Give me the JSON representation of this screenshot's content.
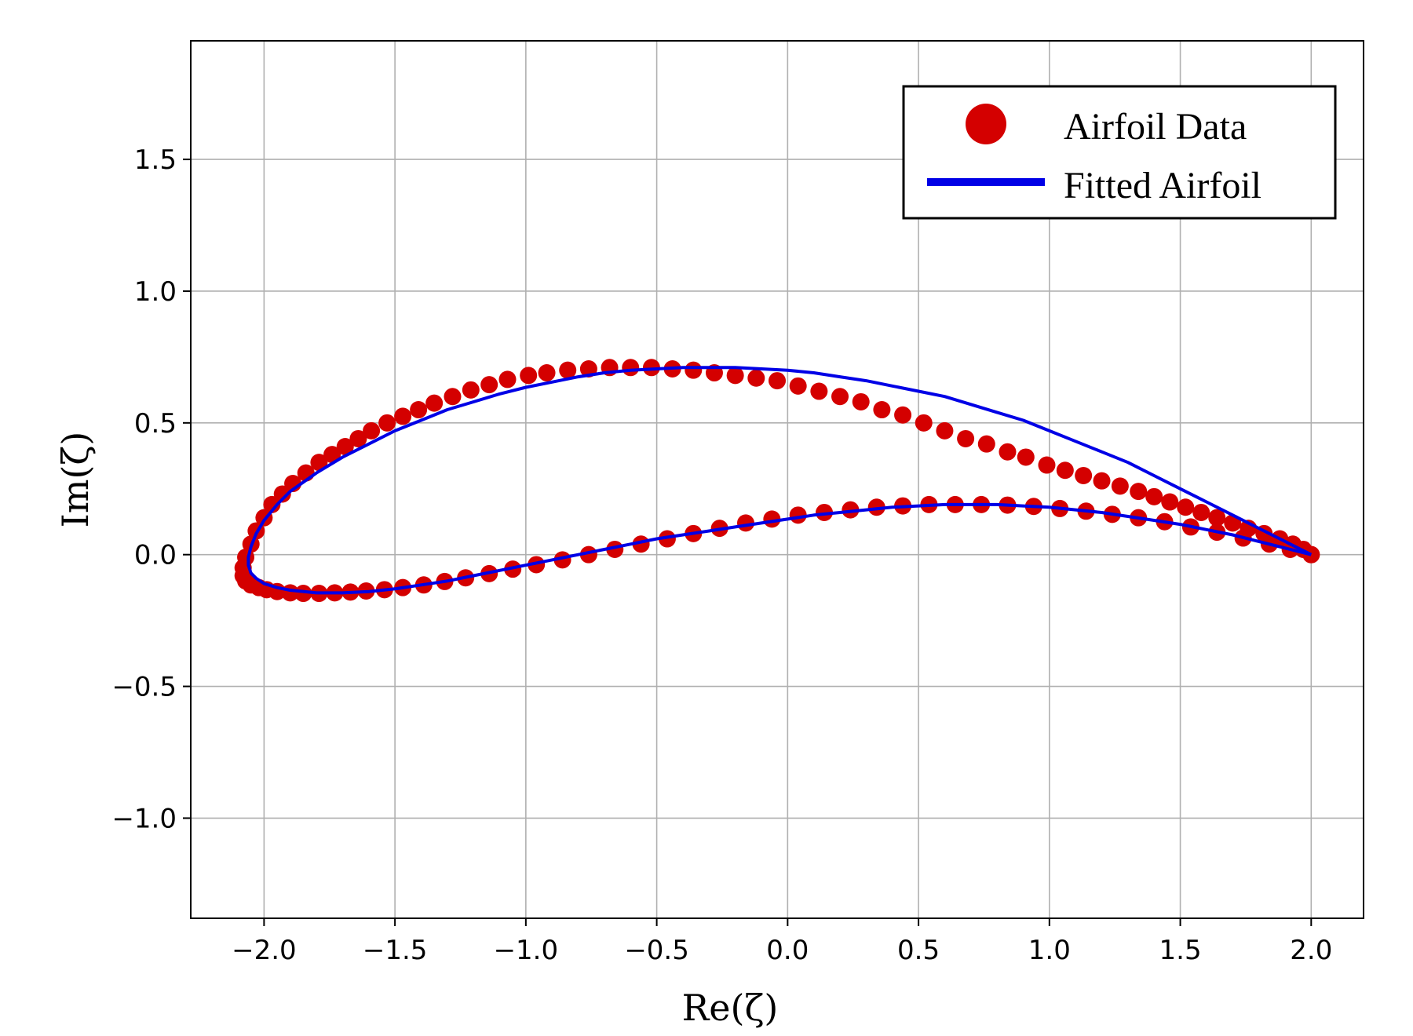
{
  "chart_data": {
    "type": "scatter",
    "title": "",
    "xlabel": "Re(ζ)",
    "ylabel": "Im(ζ)",
    "xlim": [
      -2.28,
      2.2
    ],
    "ylim": [
      -1.38,
      1.95
    ],
    "xticks": [
      -2.0,
      -1.5,
      -1.0,
      -0.5,
      0.0,
      0.5,
      1.0,
      1.5,
      2.0
    ],
    "yticks": [
      -1.0,
      -0.5,
      0.0,
      0.5,
      1.0,
      1.5
    ],
    "xtick_labels": [
      "−2.0",
      "−1.5",
      "−1.0",
      "−0.5",
      "0.0",
      "0.5",
      "1.0",
      "1.5",
      "2.0"
    ],
    "ytick_labels": [
      "−1.0",
      "−0.5",
      "0.0",
      "0.5",
      "1.0",
      "1.5"
    ],
    "grid": true,
    "legend_position": "top-right",
    "series": [
      {
        "name": "Airfoil Data",
        "kind": "scatter",
        "color": "#d40000",
        "x": [
          2.0,
          1.97,
          1.93,
          1.88,
          1.82,
          1.76,
          1.7,
          1.64,
          1.58,
          1.52,
          1.46,
          1.4,
          1.34,
          1.27,
          1.2,
          1.13,
          1.06,
          0.99,
          0.91,
          0.84,
          0.76,
          0.68,
          0.6,
          0.52,
          0.44,
          0.36,
          0.28,
          0.2,
          0.12,
          0.04,
          -0.04,
          -0.12,
          -0.2,
          -0.28,
          -0.36,
          -0.44,
          -0.52,
          -0.6,
          -0.68,
          -0.76,
          -0.84,
          -0.92,
          -0.99,
          -1.07,
          -1.14,
          -1.21,
          -1.28,
          -1.35,
          -1.41,
          -1.47,
          -1.53,
          -1.59,
          -1.64,
          -1.69,
          -1.74,
          -1.79,
          -1.84,
          -1.89,
          -1.93,
          -1.97,
          -2.0,
          -2.03,
          -2.05,
          -2.07,
          -2.08,
          -2.08,
          -2.07,
          -2.05,
          -2.02,
          -1.99,
          -1.95,
          -1.9,
          -1.85,
          -1.79,
          -1.73,
          -1.67,
          -1.61,
          -1.54,
          -1.47,
          -1.39,
          -1.31,
          -1.23,
          -1.14,
          -1.05,
          -0.96,
          -0.86,
          -0.76,
          -0.66,
          -0.56,
          -0.46,
          -0.36,
          -0.26,
          -0.16,
          -0.06,
          0.04,
          0.14,
          0.24,
          0.34,
          0.44,
          0.54,
          0.64,
          0.74,
          0.84,
          0.94,
          1.04,
          1.14,
          1.24,
          1.34,
          1.44,
          1.54,
          1.64,
          1.74,
          1.84,
          1.92,
          2.0
        ],
        "y": [
          0.0,
          0.02,
          0.04,
          0.06,
          0.08,
          0.1,
          0.12,
          0.14,
          0.16,
          0.18,
          0.2,
          0.22,
          0.24,
          0.26,
          0.28,
          0.3,
          0.32,
          0.34,
          0.37,
          0.39,
          0.42,
          0.44,
          0.47,
          0.5,
          0.53,
          0.55,
          0.58,
          0.6,
          0.62,
          0.64,
          0.66,
          0.67,
          0.68,
          0.69,
          0.7,
          0.705,
          0.71,
          0.71,
          0.71,
          0.705,
          0.7,
          0.69,
          0.68,
          0.665,
          0.645,
          0.625,
          0.6,
          0.575,
          0.55,
          0.525,
          0.5,
          0.47,
          0.44,
          0.41,
          0.38,
          0.35,
          0.31,
          0.27,
          0.23,
          0.19,
          0.14,
          0.09,
          0.04,
          -0.01,
          -0.05,
          -0.08,
          -0.1,
          -0.115,
          -0.125,
          -0.133,
          -0.14,
          -0.145,
          -0.147,
          -0.147,
          -0.145,
          -0.142,
          -0.138,
          -0.133,
          -0.125,
          -0.115,
          -0.102,
          -0.088,
          -0.072,
          -0.055,
          -0.038,
          -0.02,
          0.0,
          0.02,
          0.04,
          0.06,
          0.08,
          0.1,
          0.12,
          0.135,
          0.15,
          0.16,
          0.17,
          0.18,
          0.185,
          0.19,
          0.19,
          0.19,
          0.188,
          0.183,
          0.175,
          0.165,
          0.153,
          0.14,
          0.125,
          0.105,
          0.085,
          0.063,
          0.04,
          0.02,
          0.0
        ]
      },
      {
        "name": "Fitted Airfoil",
        "kind": "line",
        "color": "#0000e6",
        "x": [
          2.0,
          1.9,
          1.8,
          1.7,
          1.6,
          1.5,
          1.4,
          1.3,
          1.2,
          1.1,
          1.0,
          0.9,
          0.8,
          0.7,
          0.6,
          0.5,
          0.4,
          0.3,
          0.2,
          0.1,
          0.0,
          -0.1,
          -0.2,
          -0.3,
          -0.4,
          -0.5,
          -0.6,
          -0.7,
          -0.8,
          -0.9,
          -1.0,
          -1.1,
          -1.2,
          -1.3,
          -1.4,
          -1.5,
          -1.6,
          -1.7,
          -1.8,
          -1.9,
          -1.95,
          -2.0,
          -2.03,
          -2.05,
          -2.06,
          -2.06,
          -2.05,
          -2.03,
          -2.0,
          -1.95,
          -1.9,
          -1.8,
          -1.7,
          -1.6,
          -1.5,
          -1.4,
          -1.3,
          -1.2,
          -1.1,
          -1.0,
          -0.9,
          -0.8,
          -0.7,
          -0.6,
          -0.5,
          -0.4,
          -0.3,
          -0.2,
          -0.1,
          0.0,
          0.1,
          0.2,
          0.3,
          0.4,
          0.5,
          0.6,
          0.7,
          0.8,
          0.9,
          1.0,
          1.1,
          1.2,
          1.3,
          1.4,
          1.5,
          1.6,
          1.7,
          1.8,
          1.9,
          2.0
        ],
        "y": [
          0.0,
          0.05,
          0.1,
          0.15,
          0.2,
          0.25,
          0.3,
          0.35,
          0.39,
          0.43,
          0.47,
          0.51,
          0.54,
          0.57,
          0.6,
          0.62,
          0.64,
          0.66,
          0.675,
          0.69,
          0.7,
          0.705,
          0.71,
          0.71,
          0.71,
          0.705,
          0.7,
          0.69,
          0.675,
          0.655,
          0.635,
          0.61,
          0.58,
          0.55,
          0.51,
          0.47,
          0.42,
          0.37,
          0.31,
          0.24,
          0.19,
          0.13,
          0.08,
          0.03,
          -0.01,
          -0.04,
          -0.07,
          -0.09,
          -0.11,
          -0.125,
          -0.135,
          -0.145,
          -0.145,
          -0.14,
          -0.13,
          -0.115,
          -0.1,
          -0.08,
          -0.06,
          -0.04,
          -0.02,
          0.0,
          0.02,
          0.04,
          0.06,
          0.075,
          0.09,
          0.105,
          0.12,
          0.135,
          0.15,
          0.16,
          0.17,
          0.18,
          0.185,
          0.19,
          0.19,
          0.19,
          0.185,
          0.18,
          0.17,
          0.16,
          0.145,
          0.13,
          0.115,
          0.095,
          0.075,
          0.05,
          0.025,
          0.0
        ]
      }
    ]
  }
}
